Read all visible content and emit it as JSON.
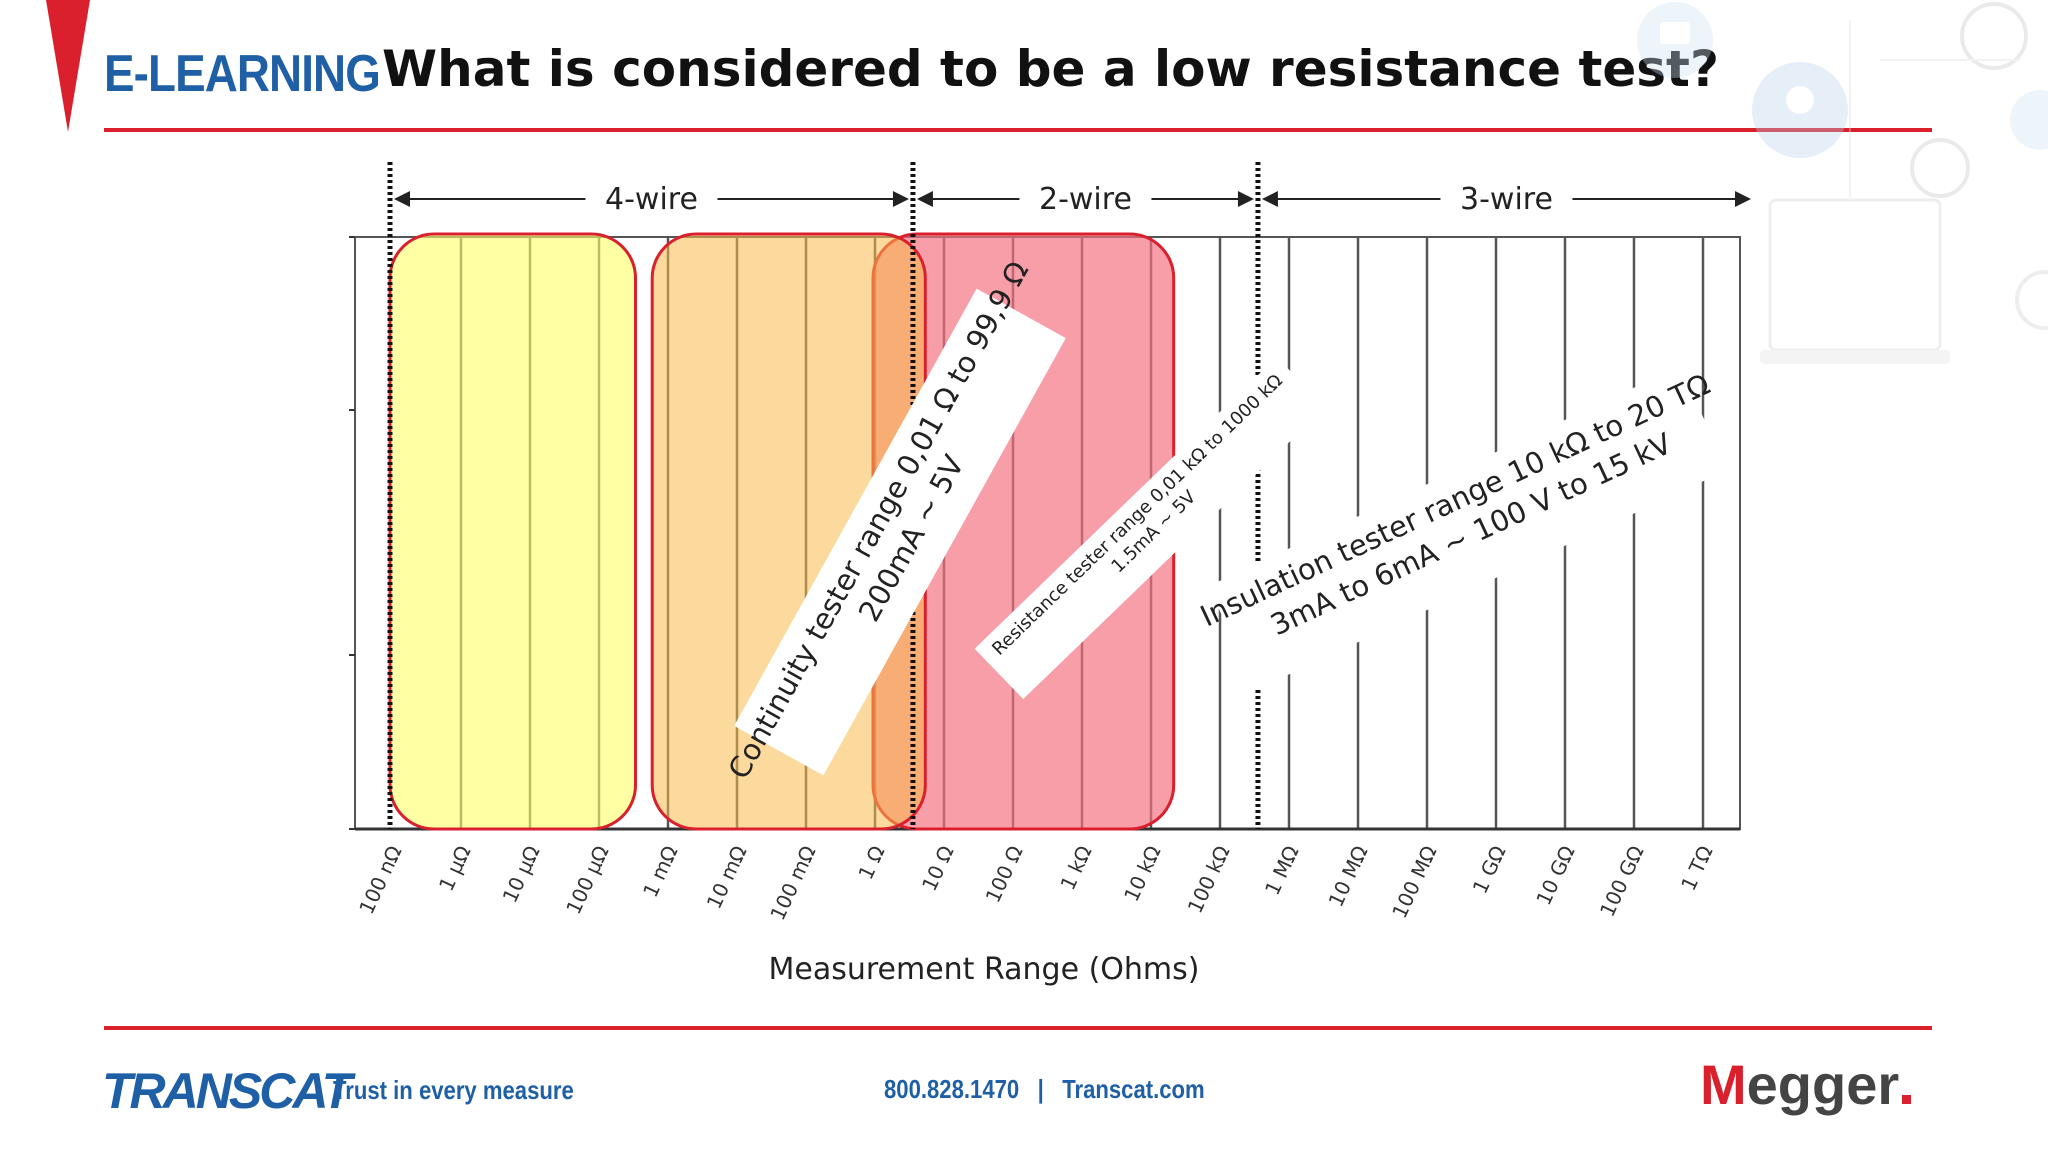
{
  "header": {
    "brand": "E-LEARNING",
    "title": "What is considered to be a low resistance test?"
  },
  "diagram": {
    "wire_labels": [
      "4-wire",
      "2-wire",
      "3-wire"
    ],
    "tick_labels": [
      "100 nΩ",
      "1 µΩ",
      "10 µΩ",
      "100 µΩ",
      "1 mΩ",
      "10 mΩ",
      "100 mΩ",
      "1 Ω",
      "10 Ω",
      "100 Ω",
      "1 kΩ",
      "10 kΩ",
      "100 kΩ",
      "1 MΩ",
      "10 MΩ",
      "100 MΩ",
      "1 GΩ",
      "10 GΩ",
      "100 GΩ",
      "1 TΩ"
    ],
    "xlabel": "Measurement Range (Ohms)",
    "continuity": {
      "line1": "Continuity tester range 0,01 Ω to 99,9 Ω",
      "line2": "200mA ~ 5V",
      "color": "#ffff66"
    },
    "resistance": {
      "line1": "Resistance tester range 0,01 kΩ to 1000 kΩ",
      "line2": "1.5mA ~ 5V",
      "color": "#f9b94a"
    },
    "insulation": {
      "line1": "Insulation tester range 10 kΩ to 20 TΩ",
      "line2": "3mA to 6mA ~ 100 V to 15 kV",
      "color": "#f3707f"
    }
  },
  "footer": {
    "brand": "TRANSCAT",
    "tagline": "Trust in every measure",
    "contact": "800.828.1470   |   Transcat.com",
    "logo_initial": "M",
    "logo_rest": "egger"
  }
}
